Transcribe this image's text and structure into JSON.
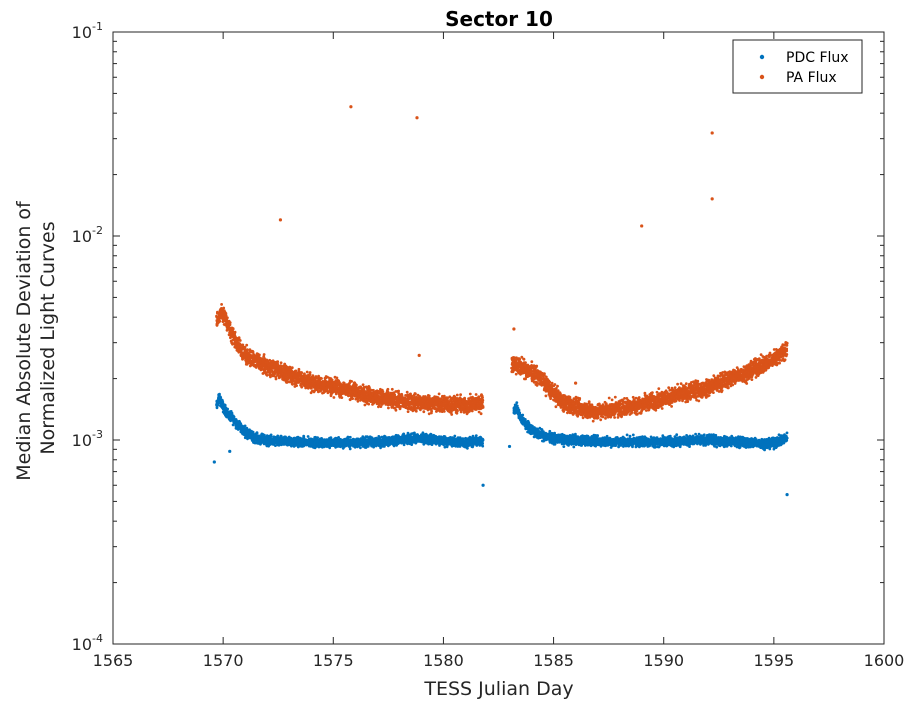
{
  "chart_data": {
    "type": "scatter",
    "title": "Sector 10",
    "xlabel": "TESS Julian Day",
    "ylabel": [
      "Median Absolute Deviation of",
      "Normalized Light Curves"
    ],
    "xlim": [
      1565,
      1600
    ],
    "ylim": [
      0.0001,
      0.1
    ],
    "yscale": "log",
    "grid": false,
    "legend_position": "top-right",
    "x_ticks": [
      1565,
      1570,
      1575,
      1580,
      1585,
      1590,
      1595,
      1600
    ],
    "x_tick_labels": [
      "1565",
      "1570",
      "1575",
      "1580",
      "1585",
      "1590",
      "1595",
      "1600"
    ],
    "y_ticks": [
      0.0001,
      0.001,
      0.01,
      0.1
    ],
    "y_tick_labels": [
      {
        "base": "10",
        "exp": "-4"
      },
      {
        "base": "10",
        "exp": "-3"
      },
      {
        "base": "10",
        "exp": "-2"
      },
      {
        "base": "10",
        "exp": "-1"
      }
    ],
    "series": [
      {
        "name": "PDC Flux",
        "color": "#0072BD",
        "segments": [
          {
            "x": [
              1569.7,
              1569.8,
              1569.9,
              1570.0,
              1570.2,
              1570.5,
              1570.9,
              1571.4,
              1572.0,
              1573.0,
              1574.0,
              1575.0,
              1576.0,
              1577.0,
              1578.0,
              1579.0,
              1580.0,
              1581.0,
              1581.8
            ],
            "y": [
              0.00145,
              0.0016,
              0.00155,
              0.00145,
              0.00135,
              0.00125,
              0.00112,
              0.00103,
              0.00099,
              0.00098,
              0.00097,
              0.00097,
              0.00097,
              0.00098,
              0.001,
              0.00102,
              0.00099,
              0.00097,
              0.00099
            ],
            "spread": 0.035
          },
          {
            "x": [
              1583.2,
              1583.3,
              1583.5,
              1583.8,
              1584.2,
              1584.8,
              1585.5,
              1586.5,
              1588.0,
              1589.5,
              1591.0,
              1592.0,
              1593.0,
              1594.0,
              1595.0,
              1595.5,
              1595.6
            ],
            "y": [
              0.0014,
              0.00145,
              0.00128,
              0.00118,
              0.00108,
              0.00103,
              0.001,
              0.00099,
              0.00098,
              0.00098,
              0.00099,
              0.001,
              0.00098,
              0.00097,
              0.00096,
              0.00102,
              0.00104
            ],
            "spread": 0.035
          }
        ],
        "outliers": [
          [
            1569.6,
            0.00078
          ],
          [
            1570.3,
            0.00088
          ],
          [
            1581.8,
            0.0006
          ],
          [
            1583.0,
            0.00093
          ],
          [
            1595.6,
            0.00054
          ]
        ]
      },
      {
        "name": "PA Flux",
        "color": "#D95319",
        "segments": [
          {
            "x": [
              1569.7,
              1569.9,
              1570.1,
              1570.3,
              1570.6,
              1571.0,
              1572.0,
              1573.0,
              1574.0,
              1575.0,
              1576.0,
              1577.0,
              1578.0,
              1579.0,
              1580.0,
              1581.0,
              1581.8
            ],
            "y": [
              0.0038,
              0.0042,
              0.004,
              0.0035,
              0.003,
              0.0026,
              0.0023,
              0.0021,
              0.0019,
              0.00183,
              0.00172,
              0.00162,
              0.00155,
              0.00152,
              0.0015,
              0.00148,
              0.00152
            ],
            "spread": 0.06
          },
          {
            "x": [
              1583.1,
              1583.4,
              1583.8,
              1584.2,
              1584.6,
              1585.0,
              1585.5,
              1586.0,
              1586.5,
              1587.0,
              1588.0,
              1589.0,
              1590.0,
              1591.0,
              1592.0,
              1593.0,
              1594.0,
              1595.0,
              1595.6
            ],
            "y": [
              0.0024,
              0.0023,
              0.0022,
              0.0021,
              0.0019,
              0.0017,
              0.0015,
              0.00145,
              0.0014,
              0.00138,
              0.00143,
              0.0015,
              0.0016,
              0.0017,
              0.0018,
              0.002,
              0.0022,
              0.0025,
              0.0028
            ],
            "spread": 0.06
          }
        ],
        "outliers": [
          [
            1572.6,
            0.012
          ],
          [
            1575.8,
            0.043
          ],
          [
            1578.8,
            0.038
          ],
          [
            1578.9,
            0.0026
          ],
          [
            1589.0,
            0.0112
          ],
          [
            1592.2,
            0.032
          ],
          [
            1592.2,
            0.0152
          ],
          [
            1583.2,
            0.0035
          ],
          [
            1586.0,
            0.0019
          ]
        ]
      }
    ]
  }
}
